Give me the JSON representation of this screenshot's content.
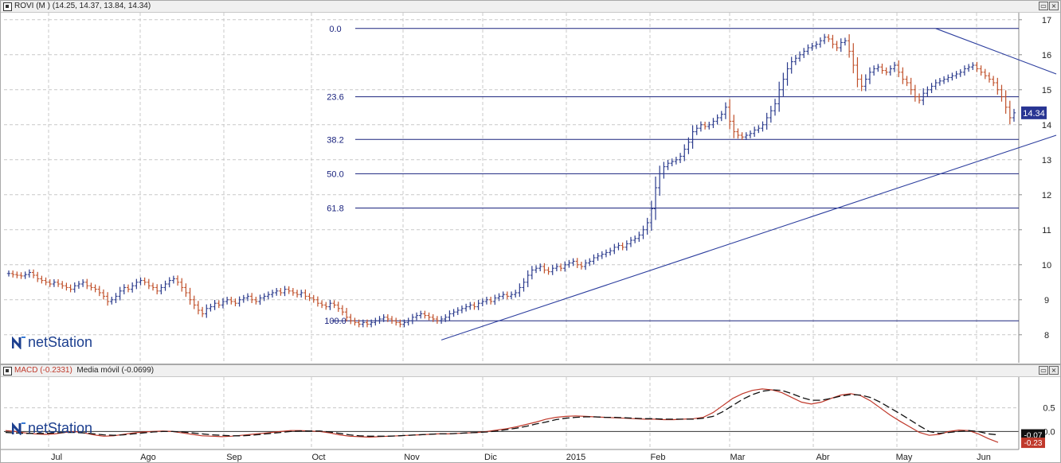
{
  "price_panel": {
    "title": "ROVI (M ) (14.25, 14.37, 13.84, 14.34)",
    "last_value": "14.34",
    "logo_text": "netStation"
  },
  "macd_panel": {
    "title_macd": "MACD (-0.2331)",
    "title_signal": "Media móvil (-0.0699)",
    "signal_label": "-0.07",
    "macd_label": "-0.23",
    "logo_text": "netStation"
  },
  "window_buttons": {
    "restore": "▭",
    "close": "×"
  },
  "colors": {
    "up_bar": "#2a3a8c",
    "down_bar": "#c0502a",
    "fib_line": "#1a237e",
    "trend_line": "#2c3e9e",
    "grid": "#c8c8c8",
    "macd_line": "#c0392b",
    "signal_line": "#111111",
    "last_label_bg": "#283593"
  },
  "chart_data": [
    {
      "type": "ohlc",
      "series_name": "ROVI",
      "x_labels": [
        "Jul",
        "Ago",
        "Sep",
        "Oct",
        "Nov",
        "Dic",
        "2015",
        "Feb",
        "Mar",
        "Abr",
        "May",
        "Jun"
      ],
      "y_ticks": [
        8,
        9,
        10,
        11,
        12,
        13,
        14,
        15,
        16,
        17
      ],
      "ylim": [
        7.2,
        17.2
      ],
      "grid": true,
      "scale_position": "right",
      "last_close": 14.34,
      "closes": [
        9.75,
        9.72,
        9.7,
        9.68,
        9.72,
        9.78,
        9.7,
        9.6,
        9.55,
        9.5,
        9.45,
        9.5,
        9.45,
        9.4,
        9.35,
        9.3,
        9.4,
        9.45,
        9.5,
        9.4,
        9.35,
        9.3,
        9.2,
        9.1,
        8.95,
        9.0,
        9.1,
        9.25,
        9.35,
        9.3,
        9.4,
        9.5,
        9.55,
        9.5,
        9.4,
        9.35,
        9.25,
        9.35,
        9.45,
        9.55,
        9.6,
        9.5,
        9.35,
        9.2,
        9.0,
        8.85,
        8.7,
        8.6,
        8.75,
        8.8,
        8.9,
        8.85,
        8.95,
        9.0,
        8.95,
        8.9,
        9.0,
        9.05,
        9.1,
        9.0,
        8.95,
        9.05,
        9.1,
        9.15,
        9.2,
        9.25,
        9.2,
        9.3,
        9.25,
        9.2,
        9.15,
        9.2,
        9.1,
        9.05,
        9.0,
        8.9,
        8.85,
        8.8,
        8.9,
        8.85,
        8.75,
        8.65,
        8.5,
        8.4,
        8.35,
        8.3,
        8.35,
        8.3,
        8.35,
        8.4,
        8.45,
        8.5,
        8.45,
        8.4,
        8.35,
        8.3,
        8.35,
        8.4,
        8.5,
        8.55,
        8.6,
        8.55,
        8.5,
        8.45,
        8.4,
        8.45,
        8.5,
        8.6,
        8.65,
        8.7,
        8.75,
        8.8,
        8.85,
        8.8,
        8.9,
        8.95,
        9.0,
        8.95,
        9.05,
        9.1,
        9.15,
        9.1,
        9.15,
        9.2,
        9.35,
        9.5,
        9.7,
        9.85,
        9.9,
        9.95,
        9.85,
        9.8,
        9.9,
        9.95,
        9.9,
        10.0,
        10.05,
        10.1,
        10.0,
        9.95,
        10.05,
        10.1,
        10.2,
        10.25,
        10.3,
        10.35,
        10.4,
        10.5,
        10.55,
        10.5,
        10.6,
        10.7,
        10.75,
        10.85,
        11.0,
        11.2,
        11.6,
        12.2,
        12.6,
        12.8,
        12.9,
        12.95,
        13.0,
        13.1,
        13.3,
        13.5,
        13.8,
        13.9,
        14.0,
        13.95,
        14.0,
        14.1,
        14.2,
        14.3,
        14.5,
        14.1,
        13.8,
        13.7,
        13.65,
        13.7,
        13.75,
        13.85,
        13.9,
        14.0,
        14.2,
        14.4,
        14.6,
        15.0,
        15.3,
        15.6,
        15.8,
        15.9,
        16.0,
        16.1,
        16.2,
        16.25,
        16.3,
        16.4,
        16.5,
        16.45,
        16.3,
        16.2,
        16.35,
        16.4,
        16.1,
        15.7,
        15.3,
        15.1,
        15.3,
        15.5,
        15.6,
        15.65,
        15.55,
        15.5,
        15.6,
        15.7,
        15.5,
        15.3,
        15.2,
        15.0,
        14.8,
        14.7,
        14.9,
        15.0,
        15.1,
        15.2,
        15.25,
        15.3,
        15.35,
        15.4,
        15.45,
        15.5,
        15.6,
        15.65,
        15.7,
        15.6,
        15.5,
        15.4,
        15.3,
        15.2,
        15.0,
        14.8,
        14.5,
        14.2,
        14.34
      ],
      "fibonacci": [
        {
          "level": "0.0",
          "price": 16.75
        },
        {
          "level": "23.6",
          "price": 14.8
        },
        {
          "level": "38.2",
          "price": 13.58
        },
        {
          "level": "50.0",
          "price": 12.6
        },
        {
          "level": "61.8",
          "price": 11.62
        },
        {
          "level": "100.0",
          "price": 8.4
        }
      ],
      "trendlines": [
        {
          "from_index": 105,
          "from_price": 7.85,
          "to_index": 250,
          "to_price": 13.7
        },
        {
          "from_index": 225,
          "from_price": 16.75,
          "to_index": 250,
          "to_price": 15.45
        }
      ]
    },
    {
      "type": "line",
      "series": [
        {
          "name": "MACD",
          "values": [
            0.02,
            0.0,
            -0.03,
            -0.05,
            -0.06,
            -0.05,
            -0.02,
            0.0,
            -0.03,
            -0.07,
            -0.1,
            -0.09,
            -0.06,
            -0.03,
            -0.01,
            0.0,
            0.01,
            0.0,
            -0.03,
            -0.06,
            -0.09,
            -0.1,
            -0.11,
            -0.1,
            -0.08,
            -0.06,
            -0.04,
            -0.02,
            0.0,
            0.02,
            0.02,
            0.01,
            0.0,
            -0.03,
            -0.07,
            -0.1,
            -0.11,
            -0.12,
            -0.11,
            -0.1,
            -0.09,
            -0.08,
            -0.07,
            -0.06,
            -0.05,
            -0.05,
            -0.04,
            -0.03,
            -0.02,
            0.0,
            0.03,
            0.06,
            0.1,
            0.15,
            0.2,
            0.26,
            0.3,
            0.32,
            0.33,
            0.32,
            0.31,
            0.3,
            0.29,
            0.28,
            0.27,
            0.26,
            0.26,
            0.25,
            0.25,
            0.26,
            0.27,
            0.3,
            0.4,
            0.55,
            0.7,
            0.8,
            0.87,
            0.9,
            0.88,
            0.82,
            0.72,
            0.62,
            0.58,
            0.62,
            0.7,
            0.77,
            0.8,
            0.76,
            0.65,
            0.5,
            0.35,
            0.22,
            0.1,
            -0.02,
            -0.08,
            -0.06,
            0.0,
            0.03,
            0.02,
            -0.05,
            -0.15,
            -0.23
          ]
        },
        {
          "name": "Media móvil",
          "values": [
            -0.02,
            -0.03,
            -0.04,
            -0.04,
            -0.04,
            -0.03,
            -0.02,
            -0.02,
            -0.03,
            -0.05,
            -0.07,
            -0.08,
            -0.07,
            -0.05,
            -0.03,
            -0.01,
            0.0,
            0.0,
            -0.01,
            -0.03,
            -0.05,
            -0.07,
            -0.08,
            -0.09,
            -0.09,
            -0.08,
            -0.06,
            -0.04,
            -0.02,
            0.0,
            0.01,
            0.01,
            0.01,
            -0.01,
            -0.04,
            -0.07,
            -0.09,
            -0.1,
            -0.1,
            -0.1,
            -0.09,
            -0.08,
            -0.07,
            -0.06,
            -0.05,
            -0.05,
            -0.04,
            -0.03,
            -0.02,
            -0.01,
            0.01,
            0.04,
            0.07,
            0.11,
            0.16,
            0.2,
            0.25,
            0.28,
            0.3,
            0.31,
            0.31,
            0.3,
            0.3,
            0.29,
            0.28,
            0.27,
            0.27,
            0.26,
            0.26,
            0.26,
            0.26,
            0.28,
            0.32,
            0.42,
            0.55,
            0.68,
            0.78,
            0.85,
            0.88,
            0.87,
            0.8,
            0.72,
            0.66,
            0.66,
            0.7,
            0.75,
            0.78,
            0.77,
            0.72,
            0.62,
            0.5,
            0.38,
            0.25,
            0.12,
            0.0,
            -0.04,
            -0.02,
            0.0,
            0.02,
            0.0,
            -0.05,
            -0.07
          ]
        }
      ],
      "y_ticks": [
        0.0,
        0.5
      ],
      "ylim": [
        -0.38,
        1.15
      ],
      "grid": true
    }
  ]
}
